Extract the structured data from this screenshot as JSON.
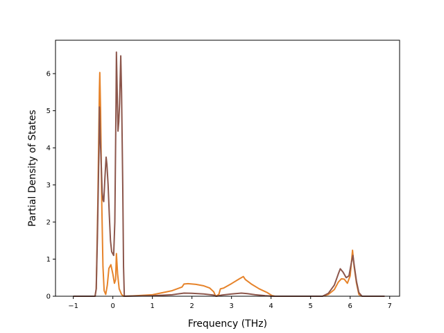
{
  "chart_data": {
    "type": "line",
    "title": "",
    "xlabel": "Frequency (THz)",
    "ylabel": "Partial Density of States",
    "xlim": [
      -1.45,
      7.25
    ],
    "ylim": [
      0,
      6.9
    ],
    "xticks": [
      -1,
      0,
      1,
      2,
      3,
      4,
      5,
      6,
      7
    ],
    "yticks": [
      0,
      1,
      2,
      3,
      4,
      5,
      6
    ],
    "xtick_labels": [
      "−1",
      "0",
      "1",
      "2",
      "3",
      "4",
      "5",
      "6",
      "7"
    ],
    "ytick_labels": [
      "0",
      "1",
      "2",
      "3",
      "4",
      "5",
      "6"
    ],
    "grid": false,
    "legend": "none",
    "series": [
      {
        "color": "#e6832a",
        "points": [
          [
            -1.0,
            0
          ],
          [
            -0.45,
            0
          ],
          [
            -0.42,
            0.2
          ],
          [
            -0.38,
            2.5
          ],
          [
            -0.34,
            5.6
          ],
          [
            -0.33,
            6.03
          ],
          [
            -0.31,
            5.0
          ],
          [
            -0.28,
            2.5
          ],
          [
            -0.25,
            0.8
          ],
          [
            -0.22,
            0.15
          ],
          [
            -0.18,
            0.05
          ],
          [
            -0.14,
            0.3
          ],
          [
            -0.1,
            0.75
          ],
          [
            -0.05,
            0.85
          ],
          [
            0.0,
            0.6
          ],
          [
            0.04,
            0.35
          ],
          [
            0.07,
            0.45
          ],
          [
            0.09,
            1.15
          ],
          [
            0.12,
            0.6
          ],
          [
            0.16,
            0.2
          ],
          [
            0.22,
            0.05
          ],
          [
            0.27,
            0
          ],
          [
            0.5,
            0.01
          ],
          [
            1.0,
            0.04
          ],
          [
            1.5,
            0.15
          ],
          [
            1.75,
            0.25
          ],
          [
            1.8,
            0.33
          ],
          [
            1.9,
            0.34
          ],
          [
            2.1,
            0.32
          ],
          [
            2.3,
            0.28
          ],
          [
            2.45,
            0.22
          ],
          [
            2.55,
            0.12
          ],
          [
            2.6,
            0.0
          ],
          [
            2.68,
            0.05
          ],
          [
            2.72,
            0.2
          ],
          [
            2.8,
            0.22
          ],
          [
            3.0,
            0.34
          ],
          [
            3.2,
            0.47
          ],
          [
            3.3,
            0.53
          ],
          [
            3.35,
            0.45
          ],
          [
            3.5,
            0.33
          ],
          [
            3.7,
            0.2
          ],
          [
            3.9,
            0.1
          ],
          [
            4.02,
            0.02
          ],
          [
            4.1,
            0
          ],
          [
            5.3,
            0
          ],
          [
            5.45,
            0.05
          ],
          [
            5.6,
            0.18
          ],
          [
            5.7,
            0.38
          ],
          [
            5.78,
            0.47
          ],
          [
            5.85,
            0.46
          ],
          [
            5.93,
            0.35
          ],
          [
            6.0,
            0.55
          ],
          [
            6.06,
            1.24
          ],
          [
            6.1,
            0.8
          ],
          [
            6.16,
            0.35
          ],
          [
            6.22,
            0.05
          ],
          [
            6.3,
            0
          ],
          [
            6.87,
            0
          ]
        ]
      },
      {
        "color": "#8c564b",
        "points": [
          [
            -1.0,
            0
          ],
          [
            -0.45,
            0
          ],
          [
            -0.42,
            0.2
          ],
          [
            -0.39,
            1.6
          ],
          [
            -0.35,
            4.0
          ],
          [
            -0.34,
            5.1
          ],
          [
            -0.32,
            4.3
          ],
          [
            -0.3,
            3.75
          ],
          [
            -0.27,
            2.8
          ],
          [
            -0.25,
            2.6
          ],
          [
            -0.23,
            2.55
          ],
          [
            -0.2,
            3.2
          ],
          [
            -0.17,
            3.75
          ],
          [
            -0.15,
            3.55
          ],
          [
            -0.12,
            3.0
          ],
          [
            -0.09,
            2.2
          ],
          [
            -0.06,
            1.5
          ],
          [
            -0.03,
            1.2
          ],
          [
            0.02,
            1.1
          ],
          [
            0.05,
            2.0
          ],
          [
            0.08,
            5.2
          ],
          [
            0.09,
            6.58
          ],
          [
            0.11,
            5.5
          ],
          [
            0.13,
            4.45
          ],
          [
            0.15,
            4.7
          ],
          [
            0.17,
            5.2
          ],
          [
            0.2,
            6.48
          ],
          [
            0.22,
            5.5
          ],
          [
            0.25,
            3.0
          ],
          [
            0.27,
            0.8
          ],
          [
            0.29,
            0
          ],
          [
            0.5,
            0.005
          ],
          [
            1.0,
            0.015
          ],
          [
            1.5,
            0.04
          ],
          [
            1.8,
            0.085
          ],
          [
            2.0,
            0.08
          ],
          [
            2.3,
            0.06
          ],
          [
            2.55,
            0.03
          ],
          [
            2.62,
            0
          ],
          [
            2.75,
            0.03
          ],
          [
            3.0,
            0.06
          ],
          [
            3.25,
            0.085
          ],
          [
            3.4,
            0.07
          ],
          [
            3.6,
            0.04
          ],
          [
            3.85,
            0.015
          ],
          [
            4.05,
            0
          ],
          [
            5.3,
            0
          ],
          [
            5.45,
            0.08
          ],
          [
            5.6,
            0.3
          ],
          [
            5.7,
            0.6
          ],
          [
            5.75,
            0.74
          ],
          [
            5.82,
            0.65
          ],
          [
            5.9,
            0.5
          ],
          [
            5.97,
            0.55
          ],
          [
            6.03,
            0.9
          ],
          [
            6.07,
            1.1
          ],
          [
            6.1,
            0.85
          ],
          [
            6.16,
            0.4
          ],
          [
            6.22,
            0.1
          ],
          [
            6.3,
            0
          ],
          [
            6.87,
            0
          ]
        ]
      }
    ]
  }
}
